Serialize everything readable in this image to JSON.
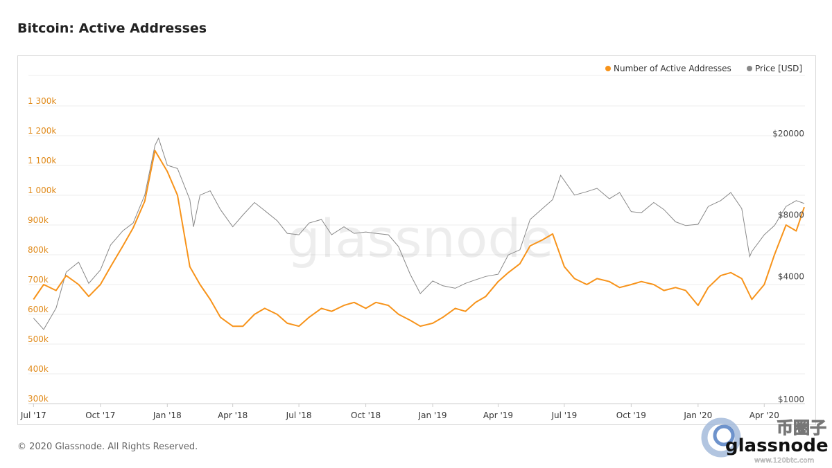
{
  "page": {
    "title": "Bitcoin: Active Addresses",
    "footer": "© 2020 Glassnode. All Rights Reserved."
  },
  "watermark": {
    "text": "glassnode",
    "corner_text": "glassnode",
    "corner_cn": "币圈子",
    "corner_url": "www.120btc.com"
  },
  "chart_data": {
    "type": "line",
    "title": "Bitcoin: Active Addresses",
    "x_ticks": [
      "Jul '17",
      "Oct '17",
      "Jan '18",
      "Apr '18",
      "Jul '18",
      "Oct '18",
      "Jan '19",
      "Apr '19",
      "Jul '19",
      "Oct '19",
      "Jan '20",
      "Apr '20"
    ],
    "y_left": {
      "ticks": [
        "300k",
        "400k",
        "500k",
        "600k",
        "700k",
        "800k",
        "900k",
        "1 000k",
        "1 100k",
        "1 200k",
        "1 300k"
      ],
      "range": [
        300000,
        1300000
      ],
      "color": "#e08a1a"
    },
    "y_right": {
      "ticks": [
        "$1000",
        "$4000",
        "$8000",
        "$20000"
      ],
      "scale": "log",
      "range": [
        1000,
        20000
      ]
    },
    "legend": {
      "placement": "top-right",
      "items": [
        {
          "name": "Number of Active Addresses",
          "color": "#f7931a"
        },
        {
          "name": "Price [USD]",
          "color": "#888888"
        }
      ]
    },
    "series": [
      {
        "name": "Number of Active Addresses",
        "color": "#f7931a",
        "axis": "left",
        "x": [
          "2017-07-01",
          "2017-07-15",
          "2017-08-01",
          "2017-08-15",
          "2017-09-01",
          "2017-09-15",
          "2017-10-01",
          "2017-10-15",
          "2017-11-01",
          "2017-11-15",
          "2017-12-01",
          "2017-12-15",
          "2018-01-01",
          "2018-01-15",
          "2018-02-01",
          "2018-02-15",
          "2018-03-01",
          "2018-03-15",
          "2018-04-01",
          "2018-04-15",
          "2018-05-01",
          "2018-05-15",
          "2018-06-01",
          "2018-06-15",
          "2018-07-01",
          "2018-07-15",
          "2018-08-01",
          "2018-08-15",
          "2018-09-01",
          "2018-09-15",
          "2018-10-01",
          "2018-10-15",
          "2018-11-01",
          "2018-11-15",
          "2018-12-01",
          "2018-12-15",
          "2019-01-01",
          "2019-01-15",
          "2019-02-01",
          "2019-02-15",
          "2019-03-01",
          "2019-03-15",
          "2019-04-01",
          "2019-04-15",
          "2019-05-01",
          "2019-05-15",
          "2019-06-01",
          "2019-06-15",
          "2019-07-01",
          "2019-07-15",
          "2019-08-01",
          "2019-08-15",
          "2019-09-01",
          "2019-09-15",
          "2019-10-01",
          "2019-10-15",
          "2019-11-01",
          "2019-11-15",
          "2019-12-01",
          "2019-12-15",
          "2020-01-01",
          "2020-01-15",
          "2020-02-01",
          "2020-02-15",
          "2020-03-01",
          "2020-03-15",
          "2020-04-01",
          "2020-04-15",
          "2020-05-01",
          "2020-05-15",
          "2020-05-26"
        ],
        "values": [
          650000,
          700000,
          680000,
          730000,
          700000,
          660000,
          700000,
          760000,
          830000,
          890000,
          980000,
          1150000,
          1080000,
          1000000,
          760000,
          700000,
          650000,
          590000,
          560000,
          560000,
          600000,
          620000,
          600000,
          570000,
          560000,
          590000,
          620000,
          610000,
          630000,
          640000,
          620000,
          640000,
          630000,
          600000,
          580000,
          560000,
          570000,
          590000,
          620000,
          610000,
          640000,
          660000,
          710000,
          740000,
          770000,
          830000,
          850000,
          870000,
          760000,
          720000,
          700000,
          720000,
          710000,
          690000,
          700000,
          710000,
          700000,
          680000,
          690000,
          680000,
          630000,
          690000,
          730000,
          740000,
          720000,
          650000,
          700000,
          800000,
          900000,
          880000,
          960000
        ]
      },
      {
        "name": "Price [USD]",
        "color": "#888888",
        "axis": "right",
        "x": [
          "2017-07-01",
          "2017-07-15",
          "2017-08-01",
          "2017-08-15",
          "2017-09-01",
          "2017-09-15",
          "2017-10-01",
          "2017-10-15",
          "2017-11-01",
          "2017-11-15",
          "2017-12-01",
          "2017-12-15",
          "2017-12-20",
          "2018-01-01",
          "2018-01-15",
          "2018-02-01",
          "2018-02-06",
          "2018-02-15",
          "2018-03-01",
          "2018-03-15",
          "2018-04-01",
          "2018-04-15",
          "2018-05-01",
          "2018-05-15",
          "2018-06-01",
          "2018-06-15",
          "2018-07-01",
          "2018-07-15",
          "2018-08-01",
          "2018-08-15",
          "2018-09-01",
          "2018-09-15",
          "2018-10-01",
          "2018-10-15",
          "2018-11-01",
          "2018-11-15",
          "2018-12-01",
          "2018-12-15",
          "2019-01-01",
          "2019-01-15",
          "2019-02-01",
          "2019-02-15",
          "2019-03-01",
          "2019-03-15",
          "2019-04-01",
          "2019-04-15",
          "2019-05-01",
          "2019-05-15",
          "2019-06-01",
          "2019-06-15",
          "2019-06-26",
          "2019-07-15",
          "2019-08-01",
          "2019-08-15",
          "2019-09-01",
          "2019-09-15",
          "2019-10-01",
          "2019-10-15",
          "2019-11-01",
          "2019-11-15",
          "2019-12-01",
          "2019-12-15",
          "2020-01-01",
          "2020-01-15",
          "2020-02-01",
          "2020-02-15",
          "2020-03-01",
          "2020-03-12",
          "2020-03-15",
          "2020-04-01",
          "2020-04-15",
          "2020-05-01",
          "2020-05-15",
          "2020-05-26"
        ],
        "values": [
          2500,
          2200,
          2800,
          4200,
          4700,
          3700,
          4300,
          5700,
          6700,
          7300,
          10000,
          17500,
          19000,
          14000,
          13500,
          9500,
          7000,
          10000,
          10500,
          8500,
          7000,
          8000,
          9200,
          8400,
          7500,
          6500,
          6400,
          7300,
          7600,
          6400,
          7000,
          6500,
          6600,
          6500,
          6400,
          5600,
          4100,
          3300,
          3800,
          3600,
          3500,
          3700,
          3850,
          4000,
          4100,
          5100,
          5400,
          7600,
          8600,
          9500,
          12500,
          10000,
          10400,
          10800,
          9600,
          10300,
          8300,
          8200,
          9200,
          8500,
          7400,
          7100,
          7200,
          8800,
          9400,
          10300,
          8600,
          5000,
          5300,
          6400,
          7100,
          8800,
          9400,
          9100
        ]
      }
    ]
  }
}
